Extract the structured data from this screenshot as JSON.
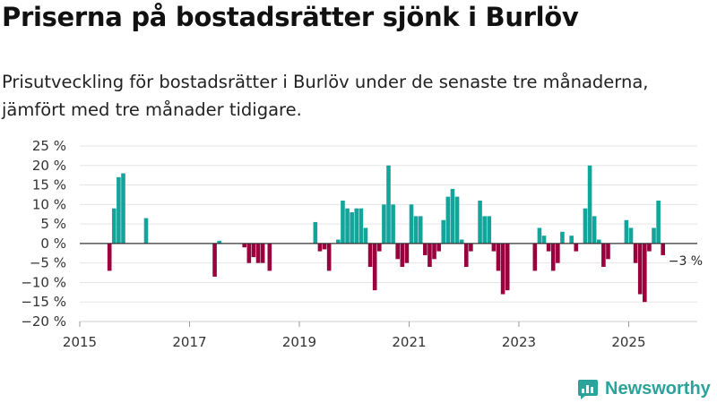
{
  "title": "Priserna på bostadsrätter sjönk i Burlöv",
  "subtitle": "Prisutveckling för bostadsrätter i Burlöv under de senaste tre månaderna, jämfört med tre månader tidigare.",
  "brand": {
    "name": "Newsworthy",
    "icon": "newsworthy-logo-icon"
  },
  "colors": {
    "positive": "#13a59c",
    "negative": "#99003d",
    "grid": "#e5e5e5",
    "zero_line": "#333333"
  },
  "chart_data": {
    "type": "bar",
    "title": "Priserna på bostadsrätter sjönk i Burlöv",
    "xlabel": "",
    "ylabel": "",
    "ylim": [
      -20,
      25
    ],
    "yticks": [
      25,
      20,
      15,
      10,
      5,
      0,
      -5,
      -10,
      -15,
      -20
    ],
    "ytick_labels": [
      "25 %",
      "20 %",
      "15 %",
      "10 %",
      "5 %",
      "0 %",
      "−5 %",
      "−10 %",
      "−15 %",
      "−20 %"
    ],
    "xlim": [
      2015,
      2026.25
    ],
    "xticks": [
      2015,
      2017,
      2019,
      2021,
      2023,
      2025
    ],
    "xtick_labels": [
      "2015",
      "2017",
      "2019",
      "2021",
      "2023",
      "2025"
    ],
    "annotation": {
      "x": 2025.625,
      "value": -3,
      "text": "−3 %"
    },
    "series": [
      {
        "name": "Prisutveckling",
        "points": [
          {
            "x": 2015.5417,
            "v": -7
          },
          {
            "x": 2015.625,
            "v": 9
          },
          {
            "x": 2015.7083,
            "v": 17
          },
          {
            "x": 2015.7917,
            "v": 18
          },
          {
            "x": 2016.2083,
            "v": 6.5
          },
          {
            "x": 2017.4583,
            "v": -8.5
          },
          {
            "x": 2017.5417,
            "v": 0.7
          },
          {
            "x": 2018.0,
            "v": -1
          },
          {
            "x": 2018.0833,
            "v": -5
          },
          {
            "x": 2018.1667,
            "v": -3.5
          },
          {
            "x": 2018.25,
            "v": -5
          },
          {
            "x": 2018.3333,
            "v": -5
          },
          {
            "x": 2018.4583,
            "v": -7
          },
          {
            "x": 2019.2917,
            "v": 5.5
          },
          {
            "x": 2019.375,
            "v": -2
          },
          {
            "x": 2019.4583,
            "v": -1.5
          },
          {
            "x": 2019.5417,
            "v": -7
          },
          {
            "x": 2019.7083,
            "v": 1
          },
          {
            "x": 2019.7917,
            "v": 11
          },
          {
            "x": 2019.875,
            "v": 9
          },
          {
            "x": 2019.9583,
            "v": 8
          },
          {
            "x": 2020.0417,
            "v": 9
          },
          {
            "x": 2020.125,
            "v": 9
          },
          {
            "x": 2020.2083,
            "v": 4
          },
          {
            "x": 2020.2917,
            "v": -6
          },
          {
            "x": 2020.375,
            "v": -12
          },
          {
            "x": 2020.4583,
            "v": -2
          },
          {
            "x": 2020.5417,
            "v": 10
          },
          {
            "x": 2020.625,
            "v": 20
          },
          {
            "x": 2020.7083,
            "v": 10
          },
          {
            "x": 2020.7917,
            "v": -4
          },
          {
            "x": 2020.875,
            "v": -6
          },
          {
            "x": 2020.9583,
            "v": -5
          },
          {
            "x": 2021.0417,
            "v": 10
          },
          {
            "x": 2021.125,
            "v": 7
          },
          {
            "x": 2021.2083,
            "v": 7
          },
          {
            "x": 2021.2917,
            "v": -3
          },
          {
            "x": 2021.375,
            "v": -6
          },
          {
            "x": 2021.4583,
            "v": -4
          },
          {
            "x": 2021.5417,
            "v": -2
          },
          {
            "x": 2021.625,
            "v": 6
          },
          {
            "x": 2021.7083,
            "v": 12
          },
          {
            "x": 2021.7917,
            "v": 14
          },
          {
            "x": 2021.875,
            "v": 12
          },
          {
            "x": 2021.9583,
            "v": 1
          },
          {
            "x": 2022.0417,
            "v": -6
          },
          {
            "x": 2022.125,
            "v": -2
          },
          {
            "x": 2022.2917,
            "v": 11
          },
          {
            "x": 2022.375,
            "v": 7
          },
          {
            "x": 2022.4583,
            "v": 7
          },
          {
            "x": 2022.5417,
            "v": -2
          },
          {
            "x": 2022.625,
            "v": -7
          },
          {
            "x": 2022.7083,
            "v": -13
          },
          {
            "x": 2022.7917,
            "v": -12
          },
          {
            "x": 2023.2917,
            "v": -7
          },
          {
            "x": 2023.375,
            "v": 4
          },
          {
            "x": 2023.4583,
            "v": 2
          },
          {
            "x": 2023.5417,
            "v": -2
          },
          {
            "x": 2023.625,
            "v": -7
          },
          {
            "x": 2023.7083,
            "v": -5
          },
          {
            "x": 2023.7917,
            "v": 3
          },
          {
            "x": 2023.9583,
            "v": 2
          },
          {
            "x": 2024.0417,
            "v": -2
          },
          {
            "x": 2024.2083,
            "v": 9
          },
          {
            "x": 2024.2917,
            "v": 20
          },
          {
            "x": 2024.375,
            "v": 7
          },
          {
            "x": 2024.4583,
            "v": 1
          },
          {
            "x": 2024.5417,
            "v": -6
          },
          {
            "x": 2024.625,
            "v": -4
          },
          {
            "x": 2024.9583,
            "v": 6
          },
          {
            "x": 2025.0417,
            "v": 4
          },
          {
            "x": 2025.125,
            "v": -5
          },
          {
            "x": 2025.2083,
            "v": -13
          },
          {
            "x": 2025.2917,
            "v": -15
          },
          {
            "x": 2025.375,
            "v": -2
          },
          {
            "x": 2025.4583,
            "v": 4
          },
          {
            "x": 2025.5417,
            "v": 11
          },
          {
            "x": 2025.625,
            "v": -3
          }
        ]
      }
    ]
  }
}
